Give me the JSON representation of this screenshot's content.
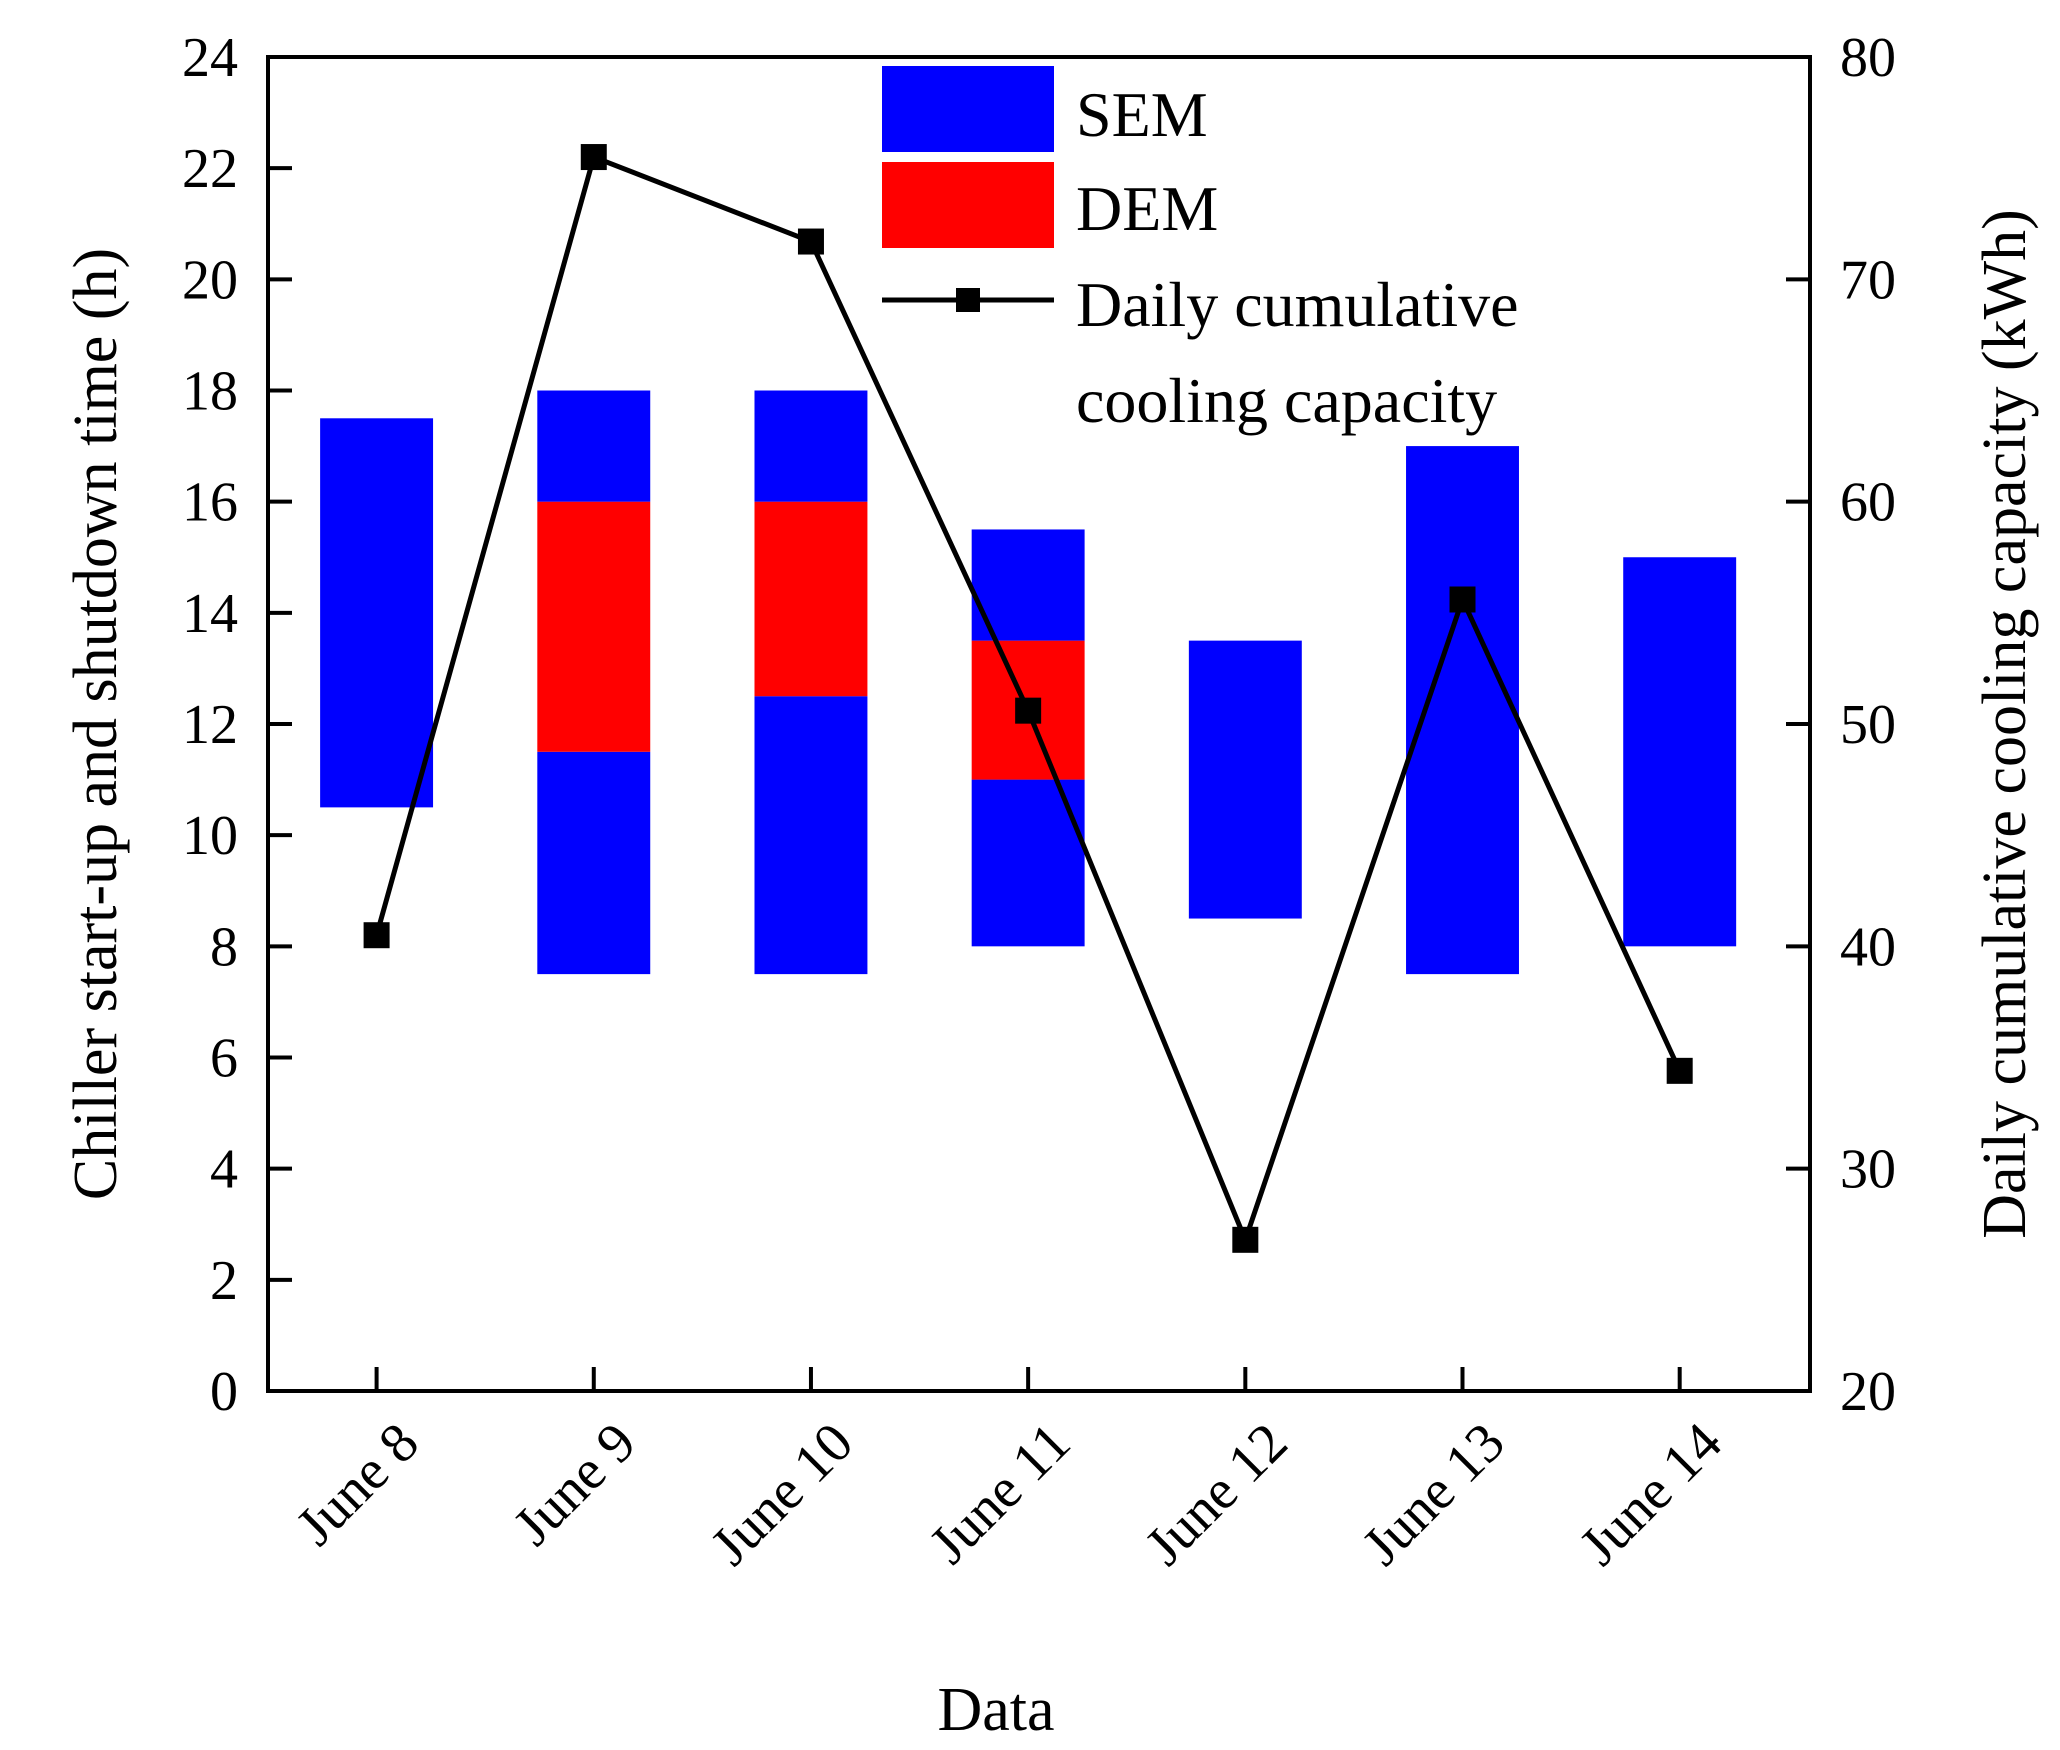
{
  "chart_data": {
    "type": "floating-bar+line",
    "categories": [
      "June 8",
      "June 9",
      "June 10",
      "June 11",
      "June 12",
      "June 13",
      "June 14"
    ],
    "xlabel": "Data",
    "ylabel_left": "Chiller start-up and shutdown time (h)",
    "ylabel_right": "Daily cumulative  cooling capacity (kWh)",
    "ylim_left": [
      0,
      24
    ],
    "ylim_right": [
      20,
      80
    ],
    "yticks_left": [
      0,
      2,
      4,
      6,
      8,
      10,
      12,
      14,
      16,
      18,
      20,
      22,
      24
    ],
    "yticks_right": [
      20,
      30,
      40,
      50,
      60,
      70,
      80
    ],
    "grid": false,
    "legend_position": "top",
    "colors": {
      "SEM": "#0000ff",
      "DEM": "#ff0000",
      "line": "#000000"
    },
    "legend": {
      "sem": "SEM",
      "dem": "DEM",
      "line_1": "Daily cumulative",
      "line_2": "cooling capacity"
    },
    "bars": [
      {
        "category": "June 8",
        "segments": [
          {
            "series": "SEM",
            "start": 10.5,
            "end": 17.5
          }
        ]
      },
      {
        "category": "June 9",
        "segments": [
          {
            "series": "SEM",
            "start": 7.5,
            "end": 11.5
          },
          {
            "series": "DEM",
            "start": 11.5,
            "end": 16.0
          },
          {
            "series": "SEM",
            "start": 16.0,
            "end": 18.0
          }
        ]
      },
      {
        "category": "June 10",
        "segments": [
          {
            "series": "SEM",
            "start": 7.5,
            "end": 12.5
          },
          {
            "series": "DEM",
            "start": 12.5,
            "end": 16.0
          },
          {
            "series": "SEM",
            "start": 16.0,
            "end": 18.0
          }
        ]
      },
      {
        "category": "June 11",
        "segments": [
          {
            "series": "SEM",
            "start": 8.0,
            "end": 11.0
          },
          {
            "series": "DEM",
            "start": 11.0,
            "end": 13.5
          },
          {
            "series": "SEM",
            "start": 13.5,
            "end": 15.5
          }
        ]
      },
      {
        "category": "June 12",
        "segments": [
          {
            "series": "SEM",
            "start": 8.5,
            "end": 13.5
          }
        ]
      },
      {
        "category": "June 13",
        "segments": [
          {
            "series": "SEM",
            "start": 7.5,
            "end": 17.0
          }
        ]
      },
      {
        "category": "June 14",
        "segments": [
          {
            "series": "SEM",
            "start": 8.0,
            "end": 15.0
          }
        ]
      }
    ],
    "line_series": {
      "name": "Daily cumulative cooling capacity",
      "axis": "right",
      "values": [
        40.5,
        75.5,
        71.7,
        50.6,
        26.8,
        55.6,
        34.4
      ]
    }
  }
}
